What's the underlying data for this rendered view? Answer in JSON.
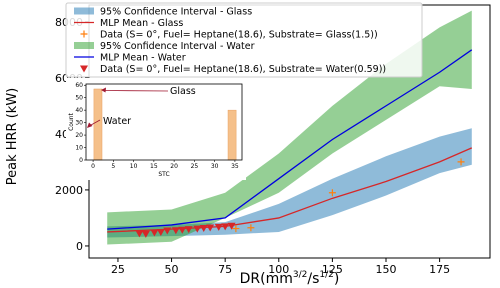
{
  "chart_data": [
    {
      "type": "line",
      "xlabel": [
        "DR(mm",
        "3/2",
        "/s",
        "1/2",
        ")"
      ],
      "ylabel": "Peak HRR (kW)",
      "x": [
        20,
        50,
        75,
        100,
        125,
        150,
        175,
        190
      ],
      "xlim": [
        11.5,
        198.5
      ],
      "xticks": [
        25,
        50,
        75,
        100,
        125,
        150,
        175
      ],
      "ylim": [
        -430,
        8600
      ],
      "yticks": [
        0,
        2000,
        4000,
        6000,
        8000
      ],
      "legend": "upper left",
      "series": [
        {
          "name": "95% Confidence Interval - Glass",
          "type": "band",
          "color": "#1f77b4",
          "lower": [
            300,
            350,
            400,
            500,
            1100,
            1800,
            2600,
            2900
          ],
          "upper": [
            700,
            750,
            850,
            1500,
            2400,
            3200,
            3900,
            4200
          ]
        },
        {
          "name": "MLP Mean - Glass",
          "type": "line",
          "color": "#d62728",
          "values": [
            500,
            600,
            700,
            1000,
            1700,
            2300,
            3000,
            3500
          ]
        },
        {
          "name": "Data (S= 0°, Fuel= Heptane(18.6), Substrate= Glass(1.5))",
          "type": "scatter",
          "marker": "plus",
          "color": "#ff7f0e",
          "x": [
            80,
            87,
            125,
            185
          ],
          "values": [
            620,
            650,
            1900,
            3000
          ]
        },
        {
          "name": "95% Confidence Interval - Water",
          "type": "band",
          "color": "#2ca02c",
          "lower": [
            50,
            150,
            1000,
            1900,
            3300,
            4500,
            5700,
            5600
          ],
          "upper": [
            1200,
            1300,
            1900,
            3300,
            5000,
            6500,
            7800,
            8400
          ]
        },
        {
          "name": "MLP Mean - Water",
          "type": "line",
          "color": "#0000e0",
          "values": [
            600,
            750,
            1000,
            2400,
            3800,
            5000,
            6200,
            7000
          ]
        },
        {
          "name": "Data (S= 0°, Fuel= Heptane(18.6), Substrate= Water(0.59))",
          "type": "scatter",
          "marker": "triangle-down",
          "color": "#d62728",
          "x": [
            35,
            38,
            42,
            45,
            48,
            52,
            55,
            58,
            62,
            65,
            68,
            72,
            75,
            78
          ],
          "values": [
            450,
            430,
            480,
            500,
            550,
            560,
            580,
            600,
            620,
            640,
            660,
            680,
            700,
            720
          ]
        }
      ]
    },
    {
      "type": "bar",
      "xlabel": "STC",
      "ylabel": "Count",
      "x": [
        1.2,
        34.3
      ],
      "values": [
        57,
        40
      ],
      "color": "#f5c08a",
      "xlim": [
        -1.75,
        36.75
      ],
      "xticks": [
        0,
        5,
        10,
        15,
        20,
        25,
        30,
        35
      ],
      "ylim": [
        0,
        61
      ],
      "yticks": [
        0,
        10,
        20,
        30,
        40,
        50,
        60
      ],
      "annotations": [
        "Glass",
        "Water"
      ]
    }
  ]
}
